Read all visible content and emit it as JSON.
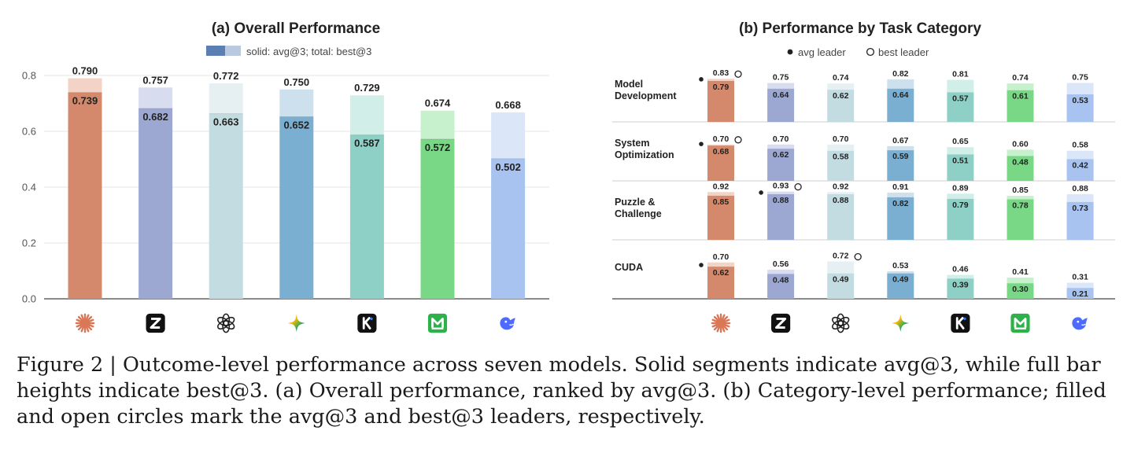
{
  "caption": {
    "line1": "Figure 2 | Outcome-level performance across seven models. Solid segments indicate avg@3, while full bar",
    "line2": "heights indicate best@3. (a) Overall performance, ranked by avg@3. (b) Category-level performance; filled",
    "line3": "and open circles mark the avg@3 and best@3 leaders, respectively."
  },
  "models": [
    {
      "icon": "claude-asterisk-icon",
      "color": "#D4896C",
      "light": "#F3D3C5"
    },
    {
      "icon": "zhipu-z-icon",
      "color": "#9DA8D2",
      "light": "#D8DCEF"
    },
    {
      "icon": "openai-knot-icon",
      "color": "#C3DCE2",
      "light": "#E6F0F3"
    },
    {
      "icon": "gemini-star-icon",
      "color": "#7BAFD2",
      "light": "#CDE0EE"
    },
    {
      "icon": "kimi-k-icon",
      "color": "#8ED0C5",
      "light": "#D2EEE9"
    },
    {
      "icon": "minimax-m-icon",
      "color": "#79D886",
      "light": "#C7F0CC"
    },
    {
      "icon": "deepseek-whale-icon",
      "color": "#A8C3EF",
      "light": "#DCE6F9"
    }
  ],
  "chart_data": [
    {
      "type": "bar",
      "title": "(a) Overall Performance",
      "legend": "solid: avg@3; total: best@3",
      "ylim": [
        0,
        0.8
      ],
      "yticks": [
        "0.0",
        "0.2",
        "0.4",
        "0.6",
        "0.8"
      ],
      "grid": true,
      "series": [
        {
          "name": "avg@3",
          "values": [
            0.739,
            0.682,
            0.663,
            0.652,
            0.587,
            0.572,
            0.502
          ]
        },
        {
          "name": "best@3",
          "values": [
            0.79,
            0.757,
            0.772,
            0.75,
            0.729,
            0.674,
            0.668
          ]
        }
      ]
    },
    {
      "type": "bar",
      "title": "(b) Performance by Task Category",
      "legend": [
        "avg leader",
        "best leader"
      ],
      "categories": [
        "Model\nDevelopment",
        "System\nOptimization",
        "Puzzle &\nChallenge",
        "CUDA"
      ],
      "avg": [
        [
          0.79,
          0.64,
          0.62,
          0.64,
          0.57,
          0.61,
          0.53
        ],
        [
          0.68,
          0.62,
          0.58,
          0.59,
          0.51,
          0.48,
          0.42
        ],
        [
          0.85,
          0.88,
          0.88,
          0.82,
          0.79,
          0.78,
          0.73
        ],
        [
          0.62,
          0.48,
          0.49,
          0.49,
          0.39,
          0.3,
          0.21
        ]
      ],
      "best": [
        [
          0.83,
          0.75,
          0.74,
          0.82,
          0.81,
          0.74,
          0.75
        ],
        [
          0.7,
          0.7,
          0.7,
          0.67,
          0.65,
          0.6,
          0.58
        ],
        [
          0.92,
          0.93,
          0.92,
          0.91,
          0.89,
          0.85,
          0.88
        ],
        [
          0.7,
          0.56,
          0.72,
          0.53,
          0.46,
          0.41,
          0.31
        ]
      ],
      "avg_leader": [
        0,
        0,
        1,
        0
      ],
      "best_leader": [
        0,
        0,
        1,
        2
      ]
    }
  ]
}
